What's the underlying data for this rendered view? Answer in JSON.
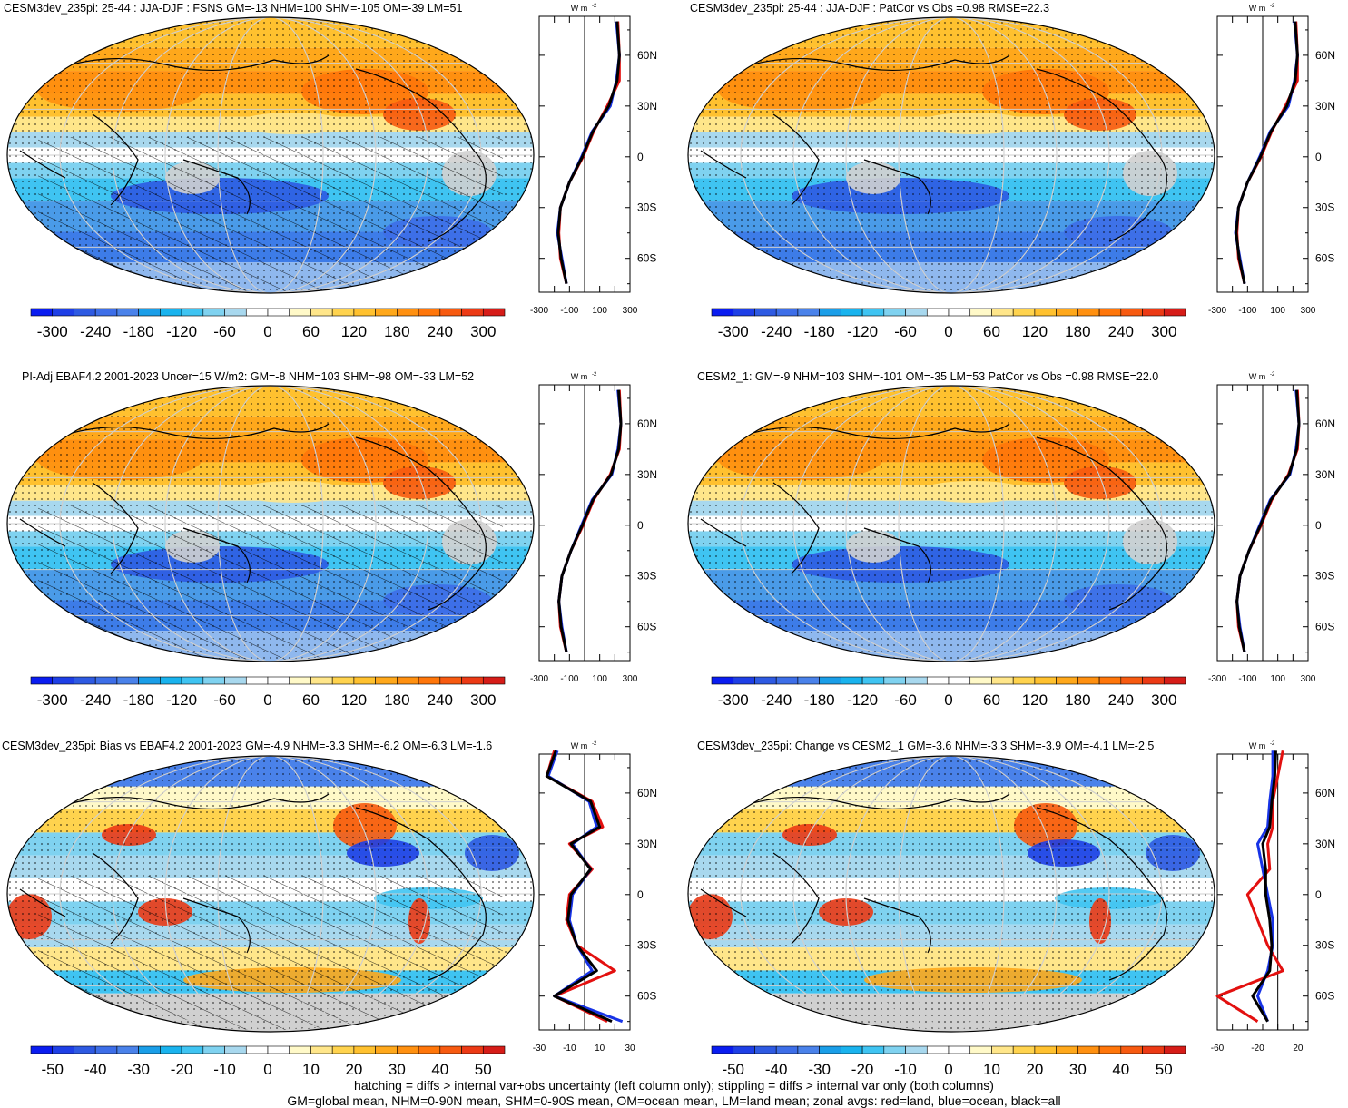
{
  "panels": [
    {
      "id": "p1",
      "title": "CESM3dev_235pi: 25-44 : JJA-DJF : FSNS GM=-13 NHM=100 SHM=-105 OM=-39 LM=51",
      "kind": "abs",
      "hatch": true
    },
    {
      "id": "p2",
      "title": "CESM3dev_235pi: 25-44 : JJA-DJF : PatCor vs Obs =0.98 RMSE=22.3",
      "kind": "abs",
      "hatch": false
    },
    {
      "id": "p3",
      "title": "PI-Adj EBAF4.2 2001-2023 Uncer=15 W/m2: GM=-8 NHM=103 SHM=-98 OM=-33 LM=52",
      "kind": "abs",
      "hatch": true
    },
    {
      "id": "p4",
      "title": "CESM2_1: GM=-9 NHM=103 SHM=-101 OM=-35 LM=53 PatCor vs Obs =0.98 RMSE=22.0",
      "kind": "abs",
      "hatch": false
    },
    {
      "id": "p5",
      "title": "CESM3dev_235pi: Bias vs EBAF4.2 2001-2023 GM=-4.9 NHM=-3.3 SHM=-6.2 OM=-6.3 LM=-1.6",
      "kind": "diff",
      "hatch": true
    },
    {
      "id": "p6",
      "title": "CESM3dev_235pi: Change vs CESM2_1 GM=-3.6 NHM=-3.3 SHM=-3.9 OM=-4.1 LM=-2.5",
      "kind": "diff",
      "hatch": false
    }
  ],
  "colorbar_abs": {
    "labels": [
      "-300",
      "-240",
      "-180",
      "-120",
      "-60",
      "0",
      "60",
      "120",
      "180",
      "240",
      "300"
    ]
  },
  "colorbar_diff": {
    "labels": [
      "-50",
      "-40",
      "-30",
      "-20",
      "-10",
      "0",
      "10",
      "20",
      "30",
      "40",
      "50"
    ]
  },
  "colorbar_colors": [
    "#0a1cf0",
    "#1e3fe6",
    "#2e5ae2",
    "#3d6ee8",
    "#4a82ea",
    "#1a9ee8",
    "#19b3ee",
    "#3fc4f2",
    "#7fd2f0",
    "#a8d8ee",
    "#ffffff",
    "#ffffff",
    "#fff9c8",
    "#ffe68a",
    "#ffd34e",
    "#ffc12f",
    "#ffa81b",
    "#ff9010",
    "#ff760a",
    "#f75a10",
    "#ec3a15",
    "#d61c18"
  ],
  "zonal_unit": "W m",
  "zonal_unit_sup": "-2",
  "lat_labels": [
    "60N",
    "30N",
    "0",
    "30S",
    "60S"
  ],
  "zonal_x_abs": [
    "-300",
    "-100",
    "100",
    "300"
  ],
  "zonal_x_p5": [
    "-30",
    "-10",
    "10",
    "30"
  ],
  "zonal_x_p6": [
    "-60",
    "-20",
    "20"
  ],
  "legend_colors": {
    "land": "#e3100f",
    "ocean": "#1733e6",
    "all": "#000000"
  },
  "chart_data": [
    {
      "type": "line",
      "panel": "p1",
      "ylabel": "",
      "y": [
        80,
        60,
        45,
        30,
        15,
        0,
        -15,
        -30,
        -45,
        -60,
        -75
      ],
      "series": [
        {
          "values": [
            220,
            230,
            230,
            150,
            60,
            -10,
            -100,
            -160,
            -170,
            -160,
            -120
          ]
        },
        {
          "values": [
            210,
            230,
            210,
            170,
            50,
            -20,
            -100,
            -160,
            -180,
            -150,
            -120
          ]
        },
        {
          "values": [
            215,
            230,
            215,
            160,
            55,
            -15,
            -100,
            -160,
            -175,
            -155,
            -120
          ]
        }
      ]
    },
    {
      "type": "line",
      "panel": "p2",
      "y": [
        80,
        60,
        45,
        30,
        15,
        0,
        -15,
        -30,
        -45,
        -60,
        -75
      ],
      "series": [
        {
          "values": [
            220,
            230,
            230,
            150,
            60,
            -10,
            -100,
            -160,
            -170,
            -160,
            -120
          ]
        },
        {
          "values": [
            210,
            230,
            210,
            170,
            50,
            -20,
            -100,
            -160,
            -180,
            -150,
            -120
          ]
        },
        {
          "values": [
            215,
            230,
            215,
            160,
            55,
            -15,
            -100,
            -160,
            -175,
            -155,
            -120
          ]
        }
      ]
    },
    {
      "type": "line",
      "panel": "p3",
      "y": [
        80,
        60,
        45,
        30,
        15,
        0,
        -15,
        -30,
        -45,
        -60,
        -75
      ],
      "series": [
        {
          "values": [
            230,
            240,
            230,
            170,
            60,
            -10,
            -90,
            -150,
            -170,
            -160,
            -120
          ]
        },
        {
          "values": [
            220,
            240,
            220,
            180,
            50,
            -20,
            -90,
            -150,
            -170,
            -150,
            -120
          ]
        },
        {
          "values": [
            225,
            240,
            225,
            175,
            55,
            -15,
            -90,
            -150,
            -170,
            -155,
            -120
          ]
        }
      ]
    },
    {
      "type": "line",
      "panel": "p4",
      "y": [
        80,
        60,
        45,
        30,
        15,
        0,
        -15,
        -30,
        -45,
        -60,
        -75
      ],
      "series": [
        {
          "values": [
            230,
            240,
            230,
            170,
            60,
            -10,
            -90,
            -150,
            -170,
            -160,
            -120
          ]
        },
        {
          "values": [
            220,
            240,
            220,
            180,
            50,
            -20,
            -90,
            -150,
            -170,
            -150,
            -120
          ]
        },
        {
          "values": [
            225,
            240,
            225,
            175,
            55,
            -15,
            -90,
            -150,
            -170,
            -155,
            -120
          ]
        }
      ]
    },
    {
      "type": "line",
      "panel": "p5",
      "y": [
        85,
        70,
        55,
        40,
        30,
        15,
        0,
        -15,
        -30,
        -45,
        -60,
        -75
      ],
      "series": [
        {
          "values": [
            -20,
            -25,
            5,
            12,
            -10,
            5,
            -10,
            -12,
            -5,
            20,
            -20,
            15
          ]
        },
        {
          "values": [
            -18,
            -24,
            3,
            8,
            -8,
            4,
            -8,
            -10,
            -5,
            5,
            -20,
            25
          ]
        },
        {
          "values": [
            -19,
            -25,
            4,
            10,
            -9,
            4,
            -9,
            -11,
            -5,
            8,
            -20,
            18
          ]
        }
      ]
    },
    {
      "type": "line",
      "panel": "p6",
      "y": [
        85,
        70,
        55,
        40,
        30,
        15,
        0,
        -15,
        -30,
        -45,
        -60,
        -75
      ],
      "series": [
        {
          "values": [
            5,
            0,
            -5,
            -5,
            -10,
            -8,
            -30,
            -20,
            -10,
            5,
            -60,
            -20
          ]
        },
        {
          "values": [
            -5,
            -5,
            -8,
            -10,
            -20,
            -15,
            -10,
            -5,
            -5,
            -10,
            -20,
            -10
          ]
        },
        {
          "values": [
            -2,
            -3,
            -6,
            -8,
            -15,
            -12,
            -12,
            -8,
            -6,
            -8,
            -25,
            -10
          ]
        }
      ]
    }
  ],
  "footer": {
    "line1": "hatching = diffs > internal var+obs uncertainty (left column only); stippling = diffs > internal var only (both columns)",
    "line2": "GM=global mean, NHM=0-90N mean, SHM=0-90S mean, OM=ocean mean, LM=land mean; zonal avgs: red=land, blue=ocean, black=all"
  }
}
